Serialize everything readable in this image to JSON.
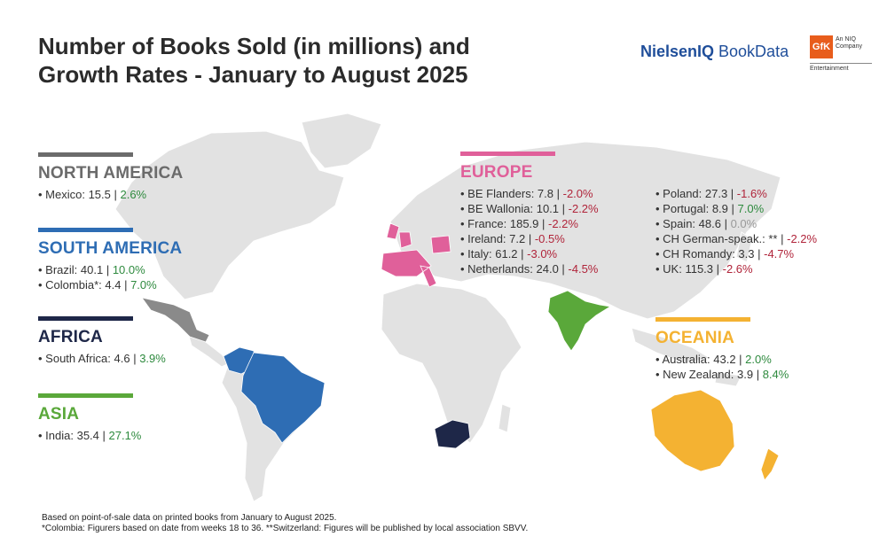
{
  "title": {
    "line1": "Number of Books Sold (in millions) and",
    "line2": "Growth Rates - January to August 2025"
  },
  "logos": {
    "nielsen_bold": "NielsenIQ",
    "nielsen_light": " BookData",
    "gfk_mark": "GfK",
    "gfk_sub": "An NIQ Company",
    "gfk_sub2": "Entertainment"
  },
  "colors": {
    "north_america": "#6b6b6b",
    "south_america": "#2e6db4",
    "africa": "#1e2748",
    "asia": "#5aa83a",
    "europe": "#e0609a",
    "oceania": "#f4b232",
    "land": "#e2e2e2",
    "positive": "#2e8a3e",
    "negative": "#b0243a"
  },
  "regions": {
    "north_america": {
      "name": "NORTH AMERICA",
      "entries": [
        {
          "label": "Mexico: 15.5",
          "sep": " | ",
          "growth": "2.6%",
          "dir": "g"
        }
      ]
    },
    "south_america": {
      "name": "SOUTH AMERICA",
      "entries": [
        {
          "label": "Brazil: 40.1",
          "sep": " | ",
          "growth": "10.0%",
          "dir": "g"
        },
        {
          "label": "Colombia*: 4.4",
          "sep": " | ",
          "growth": "7.0%",
          "dir": "g"
        }
      ]
    },
    "africa": {
      "name": "AFRICA",
      "entries": [
        {
          "label": "South Africa: 4.6",
          "sep": " | ",
          "growth": "3.9%",
          "dir": "g"
        }
      ]
    },
    "asia": {
      "name": "ASIA",
      "entries": [
        {
          "label": "India: 35.4",
          "sep": " | ",
          "growth": "27.1%",
          "dir": "g"
        }
      ]
    },
    "europe": {
      "name": "EUROPE",
      "col1": [
        {
          "label": "BE Flanders: 7.8",
          "sep": " | ",
          "growth": "-2.0%",
          "dir": "r"
        },
        {
          "label": "BE Wallonia: 10.1",
          "sep": " | ",
          "growth": "-2.2%",
          "dir": "r"
        },
        {
          "label": "France: 185.9",
          "sep": " | ",
          "growth": "-2.2%",
          "dir": "r"
        },
        {
          "label": "Ireland: 7.2",
          "sep": " | ",
          "growth": "-0.5%",
          "dir": "r"
        },
        {
          "label": "Italy: 61.2",
          "sep": " | ",
          "growth": "-3.0%",
          "dir": "r"
        },
        {
          "label": "Netherlands: 24.0",
          "sep": " | ",
          "growth": "-4.5%",
          "dir": "r"
        }
      ],
      "col2": [
        {
          "label": "Poland: 27.3",
          "sep": " | ",
          "growth": "-1.6%",
          "dir": "r"
        },
        {
          "label": "Portugal: 8.9",
          "sep": " | ",
          "growth": "7.0%",
          "dir": "g"
        },
        {
          "label": "Spain: 48.6",
          "sep": " | ",
          "growth": "0.0%",
          "dir": "n"
        },
        {
          "label": "CH German-speak.: **",
          "sep": " | ",
          "growth": "-2.2%",
          "dir": "r"
        },
        {
          "label": "CH Romandy: 3.3",
          "sep": " | ",
          "growth": "-4.7%",
          "dir": "r"
        },
        {
          "label": "UK: 115.3",
          "sep": " | ",
          "growth": "-2.6%",
          "dir": "r"
        }
      ]
    },
    "oceania": {
      "name": "OCEANIA",
      "entries": [
        {
          "label": "Australia: 43.2",
          "sep": " | ",
          "growth": "2.0%",
          "dir": "g"
        },
        {
          "label": "New Zealand: 3.9",
          "sep": " | ",
          "growth": "8.4%",
          "dir": "g"
        }
      ]
    }
  },
  "footnote": {
    "line1": "Based on point-of-sale data on printed books from January to August 2025.",
    "line2": "*Colombia: Figurers based on date from weeks 18 to 36. **Switzerland: Figures will be published by local association SBVV."
  }
}
